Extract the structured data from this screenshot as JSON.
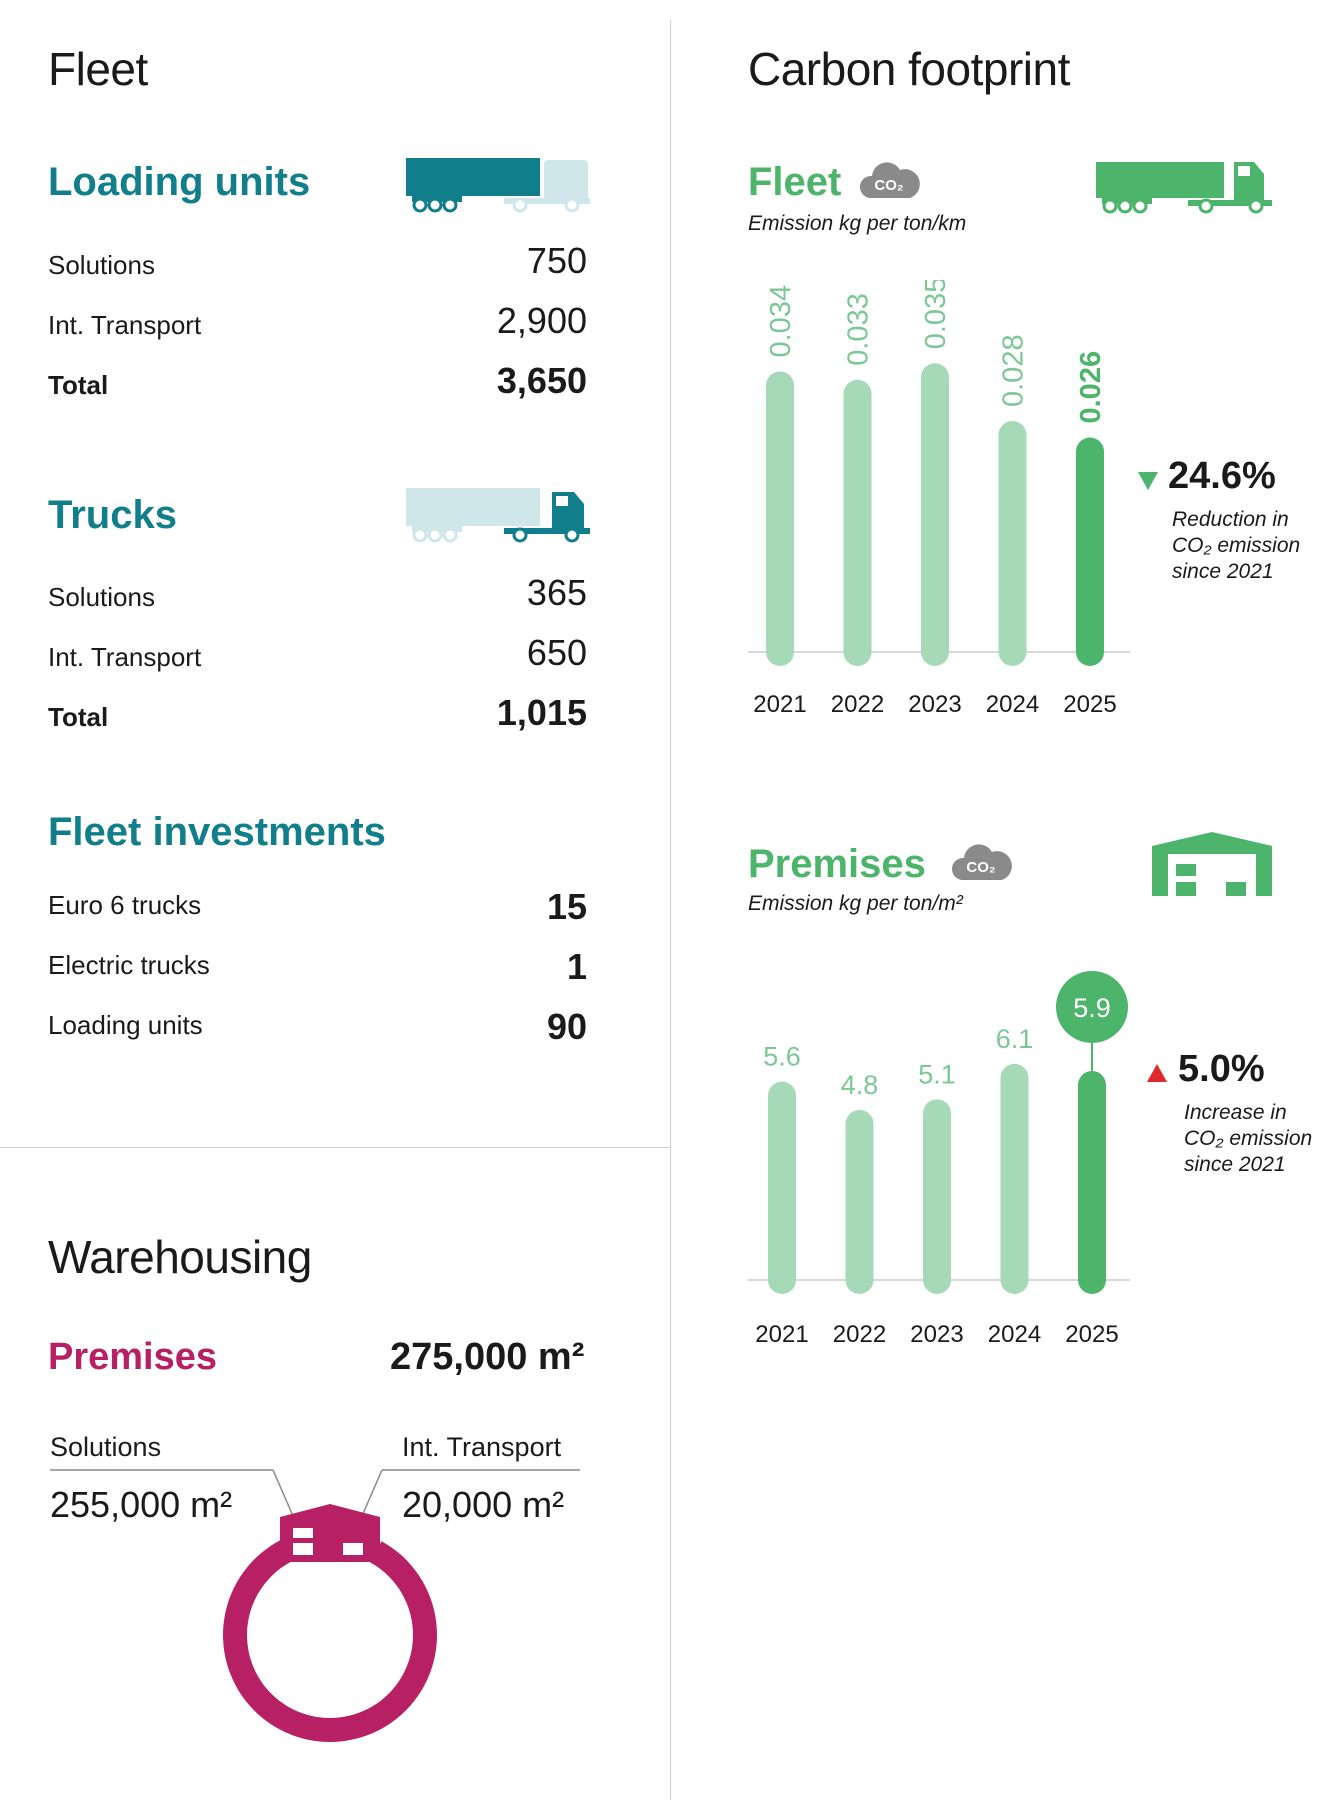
{
  "left": {
    "title": "Fleet",
    "loading_units": {
      "heading": "Loading units",
      "rows": [
        {
          "label": "Solutions",
          "value": "750"
        },
        {
          "label": "Int. Transport",
          "value": "2,900"
        },
        {
          "label": "Total",
          "value": "3,650"
        }
      ]
    },
    "trucks": {
      "heading": "Trucks",
      "rows": [
        {
          "label": "Solutions",
          "value": "365"
        },
        {
          "label": "Int. Transport",
          "value": "650"
        },
        {
          "label": "Total",
          "value": "1,015"
        }
      ]
    },
    "investments": {
      "heading": "Fleet investments",
      "rows": [
        {
          "label": "Euro 6 trucks",
          "value": "15"
        },
        {
          "label": "Electric trucks",
          "value": "1"
        },
        {
          "label": "Loading units",
          "value": "90"
        }
      ]
    },
    "warehousing": {
      "title": "Warehousing",
      "heading": "Premises",
      "total": "275,000 m²",
      "solutions_label": "Solutions",
      "solutions_value": "255,000 m²",
      "transport_label": "Int. Transport",
      "transport_value": "20,000 m²"
    }
  },
  "right": {
    "title": "Carbon footprint",
    "co2_badge": "CO₂",
    "fleet": {
      "heading": "Fleet",
      "subtitle": "Emission kg per ton/km",
      "change": "24.6%",
      "note_line1": "Reduction in",
      "note_line2": "CO₂ emission",
      "note_line3": "since 2021"
    },
    "premises": {
      "heading": "Premises",
      "subtitle": "Emission kg per ton/m²",
      "change": "5.0%",
      "note_line1": "Increase in",
      "note_line2": "CO₂ emission",
      "note_line3": "since 2021"
    }
  },
  "colors": {
    "teal": "#117e8b",
    "teal_light": "#cfe6ea",
    "green": "#4cb46b",
    "green_light": "#a5d9b7",
    "green_label": "#7cc796",
    "magenta": "#b72064",
    "magenta_dark": "#8c1a4c",
    "red": "#e02a2a",
    "gray_icon": "#8a8a8a"
  },
  "icons": [
    "truck-loading-unit-icon",
    "truck-cab-icon",
    "co2-cloud-icon",
    "warehouse-icon",
    "down-triangle-icon",
    "up-triangle-icon"
  ],
  "chart_data": [
    {
      "type": "bar",
      "title": "Fleet",
      "subtitle": "Emission kg per ton/km",
      "categories": [
        "2021",
        "2022",
        "2023",
        "2024",
        "2025"
      ],
      "values": [
        0.034,
        0.033,
        0.035,
        0.028,
        0.026
      ],
      "labels": [
        "0.034",
        "0.033",
        "0.035",
        "0.028",
        "0.026"
      ],
      "ylim": [
        0,
        0.04
      ],
      "highlight_index": 4
    },
    {
      "type": "bar",
      "title": "Premises",
      "subtitle": "Emission kg per ton/m²",
      "categories": [
        "2021",
        "2022",
        "2023",
        "2024",
        "2025"
      ],
      "values": [
        5.6,
        4.8,
        5.1,
        6.1,
        5.9
      ],
      "labels": [
        "5.6",
        "4.8",
        "5.1",
        "6.1",
        "5.9"
      ],
      "ylim": [
        0,
        7
      ],
      "highlight_index": 4
    },
    {
      "type": "pie",
      "title": "Premises",
      "categories": [
        "Solutions",
        "Int. Transport"
      ],
      "values": [
        255000,
        20000
      ]
    }
  ]
}
